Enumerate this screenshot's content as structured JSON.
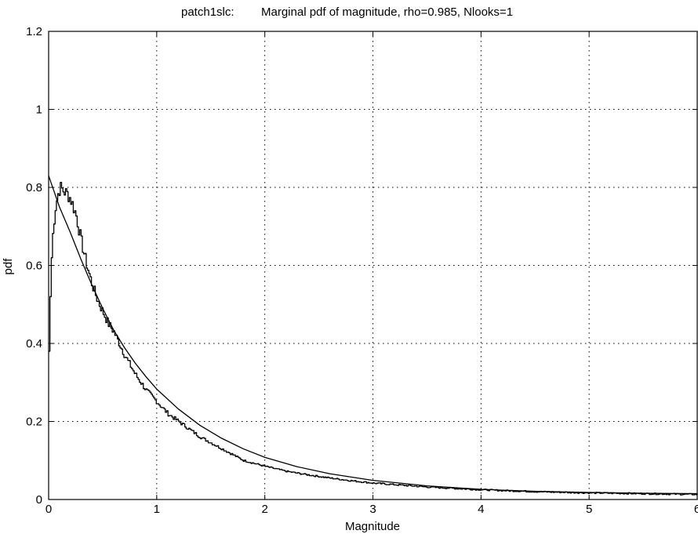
{
  "chart_data": {
    "type": "line",
    "title_prefix": "patch1slc:",
    "title": "Marginal pdf of magnitude, rho=0.985, Nlooks=1",
    "xlabel": "Magnitude",
    "ylabel": "pdf",
    "xlim": [
      0,
      6
    ],
    "ylim": [
      0,
      1.2
    ],
    "xticks": [
      "0",
      "1",
      "2",
      "3",
      "4",
      "5",
      "6"
    ],
    "yticks": [
      "0",
      "0.2",
      "0.4",
      "0.6",
      "0.8",
      "1",
      "1.2"
    ],
    "grid": true,
    "legend": "none",
    "colors": {
      "line": "#000000",
      "grid": "#000000",
      "background": "#ffffff"
    },
    "series": [
      {
        "kind": "theoretical",
        "x": [
          0,
          0.05,
          0.1,
          0.2,
          0.3,
          0.4,
          0.5,
          0.6,
          0.7,
          0.8,
          0.9,
          1.0,
          1.2,
          1.4,
          1.6,
          1.8,
          2.0,
          2.3,
          2.6,
          3.0,
          3.5,
          4.0,
          4.5,
          5.0,
          5.5,
          6.0
        ],
        "y": [
          0.83,
          0.79,
          0.75,
          0.685,
          0.615,
          0.55,
          0.49,
          0.435,
          0.39,
          0.35,
          0.315,
          0.283,
          0.232,
          0.19,
          0.157,
          0.13,
          0.108,
          0.084,
          0.066,
          0.049,
          0.035,
          0.026,
          0.021,
          0.018,
          0.016,
          0.015
        ]
      },
      {
        "kind": "histogram",
        "x": [
          0,
          0.01,
          0.02,
          0.04,
          0.06,
          0.08,
          0.1,
          0.12,
          0.14,
          0.16,
          0.18,
          0.2,
          0.25,
          0.3,
          0.35,
          0.4,
          0.45,
          0.5,
          0.55,
          0.6,
          0.65,
          0.7,
          0.8,
          0.9,
          1.0,
          1.1,
          1.2,
          1.4,
          1.6,
          1.8,
          2.0,
          2.2,
          2.4,
          2.6,
          2.8,
          3.0,
          3.5,
          4.0,
          4.5,
          5.0,
          5.5,
          6.0
        ],
        "y": [
          0.38,
          0.5,
          0.6,
          0.7,
          0.75,
          0.78,
          0.8,
          0.795,
          0.79,
          0.785,
          0.78,
          0.77,
          0.73,
          0.66,
          0.6,
          0.55,
          0.51,
          0.48,
          0.45,
          0.43,
          0.4,
          0.37,
          0.32,
          0.28,
          0.25,
          0.22,
          0.2,
          0.16,
          0.13,
          0.1,
          0.085,
          0.072,
          0.063,
          0.055,
          0.048,
          0.042,
          0.032,
          0.025,
          0.02,
          0.017,
          0.015,
          0.013
        ]
      }
    ]
  }
}
